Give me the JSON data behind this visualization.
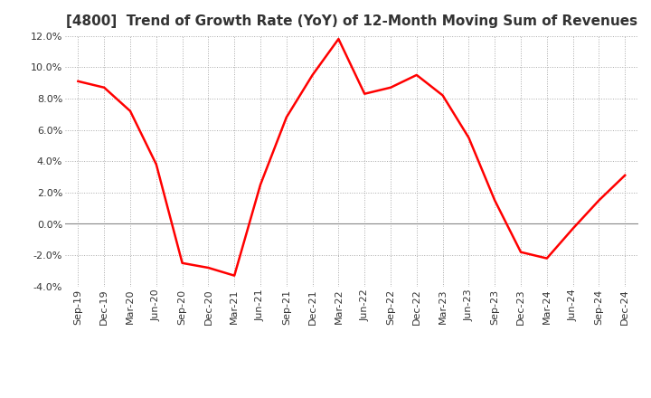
{
  "title": "[4800]  Trend of Growth Rate (YoY) of 12-Month Moving Sum of Revenues",
  "x_labels": [
    "Sep-19",
    "Dec-19",
    "Mar-20",
    "Jun-20",
    "Sep-20",
    "Dec-20",
    "Mar-21",
    "Jun-21",
    "Sep-21",
    "Dec-21",
    "Mar-22",
    "Jun-22",
    "Sep-22",
    "Dec-22",
    "Mar-23",
    "Jun-23",
    "Sep-23",
    "Dec-23",
    "Mar-24",
    "Jun-24",
    "Sep-24",
    "Dec-24"
  ],
  "y_values": [
    0.091,
    0.087,
    0.072,
    0.038,
    -0.025,
    -0.028,
    -0.033,
    0.025,
    0.068,
    0.095,
    0.118,
    0.083,
    0.087,
    0.095,
    0.082,
    0.055,
    0.015,
    -0.018,
    -0.022,
    -0.003,
    0.015,
    0.031
  ],
  "line_color": "#FF0000",
  "line_width": 1.8,
  "ylim_min": -0.04,
  "ylim_max": 0.12,
  "yticks": [
    -0.04,
    -0.02,
    0.0,
    0.02,
    0.04,
    0.06,
    0.08,
    0.1,
    0.12
  ],
  "background_color": "#FFFFFF",
  "plot_bg_color": "#FFFFFF",
  "grid_color": "#AAAAAA",
  "title_fontsize": 11,
  "tick_fontsize": 8,
  "title_color": "#333333",
  "tick_color": "#333333"
}
